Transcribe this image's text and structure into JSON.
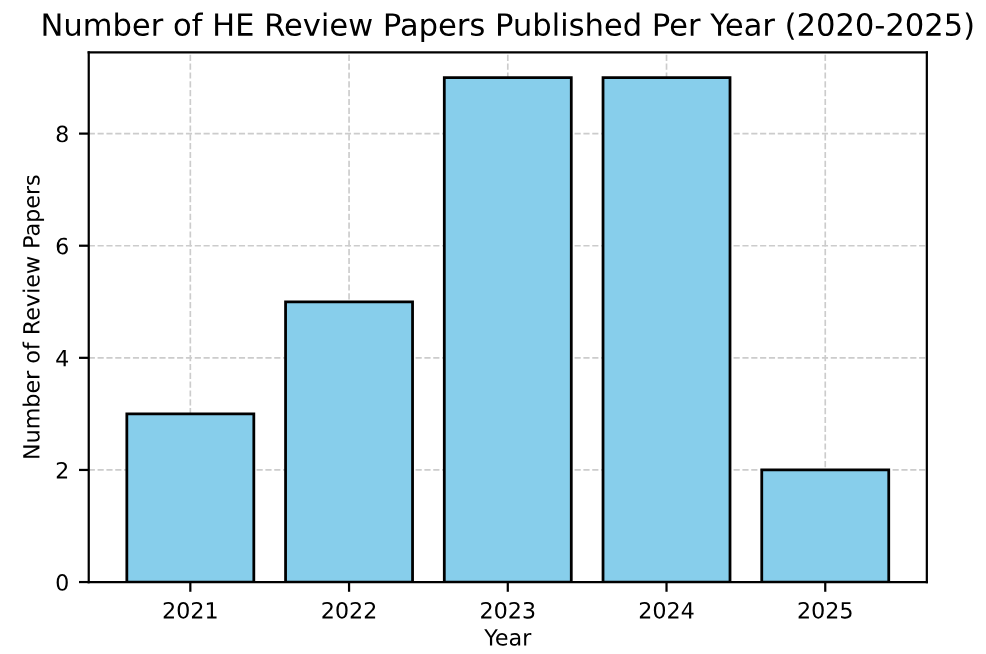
{
  "chart_data": {
    "type": "bar",
    "title": "Number of HE Review Papers Published Per Year (2020-2025)",
    "xlabel": "Year",
    "ylabel": "Number of Review Papers",
    "categories": [
      "2021",
      "2022",
      "2023",
      "2024",
      "2025"
    ],
    "values": [
      3,
      5,
      9,
      9,
      2
    ],
    "color": "#87ceeb",
    "ylim": [
      0,
      9.45
    ],
    "yticks": [
      0,
      2,
      4,
      6,
      8
    ],
    "grid": true
  }
}
